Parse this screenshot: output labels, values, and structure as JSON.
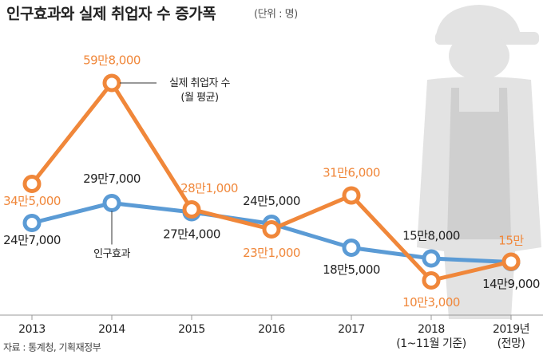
{
  "chart_data": {
    "type": "line",
    "title": "인구효과와 실제 취업자 수 증가폭",
    "subtitle": "(단위 : 명)",
    "source": "자료 : 통계청, 기획재정부",
    "categories": [
      "2013",
      "2014",
      "2015",
      "2016",
      "2017",
      "2018\n(1~11월 기준)",
      "2019년\n(전망)"
    ],
    "ylim": [
      0,
      650000
    ],
    "series": [
      {
        "name": "실제 취업자 수\n(월 평균)",
        "color": "#f0873a",
        "values": [
          345000,
          598000,
          281000,
          231000,
          316000,
          103000,
          150000
        ],
        "value_labels": [
          "34만5,000",
          "59만8,000",
          "28만1,000",
          "23만1,000",
          "31만6,000",
          "10만3,000",
          "15만"
        ]
      },
      {
        "name": "인구효과",
        "color": "#5b9bd5",
        "values": [
          247000,
          297000,
          274000,
          245000,
          185000,
          158000,
          149000
        ],
        "value_labels": [
          "24만7,000",
          "29만7,000",
          "27만4,000",
          "24만5,000",
          "18만5,000",
          "15만8,000",
          "14만9,000"
        ]
      }
    ]
  }
}
